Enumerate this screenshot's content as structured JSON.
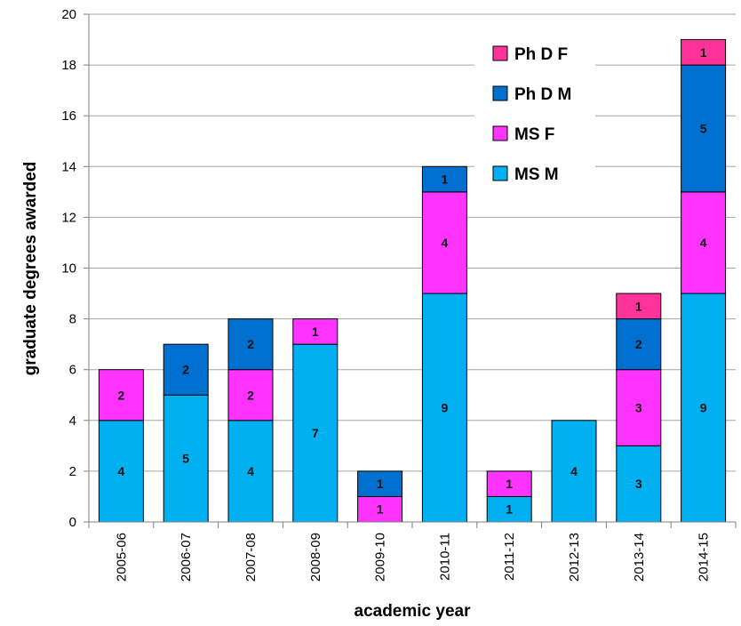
{
  "chart_data": {
    "type": "bar",
    "stacked": true,
    "categories": [
      "2005-06",
      "2006-07",
      "2007-08",
      "2008-09",
      "2009-10",
      "2010-11",
      "2011-12",
      "2012-13",
      "2013-14",
      "2014-15"
    ],
    "series": [
      {
        "name": "MS M",
        "color": "#00b0f0",
        "values": [
          4,
          5,
          4,
          7,
          0,
          9,
          1,
          4,
          3,
          9
        ]
      },
      {
        "name": "MS F",
        "color": "#ff33ff",
        "values": [
          2,
          0,
          2,
          1,
          1,
          4,
          1,
          0,
          3,
          4
        ]
      },
      {
        "name": "Ph D M",
        "color": "#0070d0",
        "values": [
          0,
          2,
          2,
          0,
          1,
          1,
          0,
          0,
          2,
          5
        ]
      },
      {
        "name": "Ph D F",
        "color": "#ff3399",
        "values": [
          0,
          0,
          0,
          0,
          0,
          0,
          0,
          0,
          1,
          1
        ]
      }
    ],
    "legend_order": [
      "Ph D F",
      "Ph D M",
      "MS F",
      "MS M"
    ],
    "xlabel": "academic year",
    "ylabel": "graduate degrees awarded",
    "ylim": [
      0,
      20
    ],
    "yticks": [
      0,
      2,
      4,
      6,
      8,
      10,
      12,
      14,
      16,
      18,
      20
    ],
    "grid": true,
    "legend_position": "top-right"
  }
}
